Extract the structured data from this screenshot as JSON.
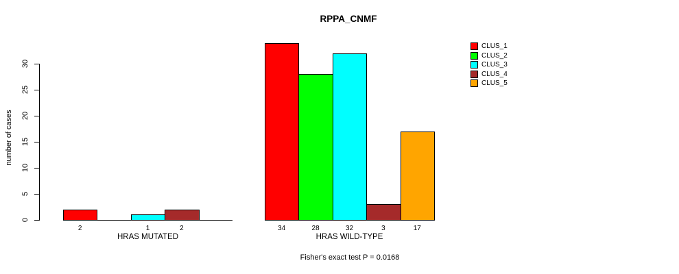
{
  "figure": {
    "background": "#FFFFFF",
    "text_color": "#000000"
  },
  "chart_data": {
    "type": "bar",
    "title": "RPPA_CNMF",
    "ylabel": "number of cases",
    "xlabel": "",
    "yticks": [
      0,
      5,
      10,
      15,
      20,
      25,
      30
    ],
    "ylim": [
      0,
      34
    ],
    "grid": false,
    "legend_position": "top-right",
    "bar_border_color": "#000000",
    "legend": [
      {
        "label": "CLUS_1",
        "color": "#FF0000"
      },
      {
        "label": "CLUS_2",
        "color": "#00FF00"
      },
      {
        "label": "CLUS_3",
        "color": "#00FFFF"
      },
      {
        "label": "CLUS_4",
        "color": "#A52A2A"
      },
      {
        "label": "CLUS_5",
        "color": "#FFA500"
      }
    ],
    "groups": [
      {
        "label": "HRAS MUTATED",
        "values": [
          2,
          0,
          1,
          2,
          0
        ],
        "bar_labels": [
          "2",
          null,
          "1",
          "2",
          null
        ]
      },
      {
        "label": "HRAS WILD-TYPE",
        "values": [
          34,
          28,
          32,
          3,
          17
        ],
        "bar_labels": [
          "34",
          "28",
          "32",
          "3",
          "17"
        ]
      }
    ],
    "footnote": "Fisher's exact test P = 0.0168"
  }
}
